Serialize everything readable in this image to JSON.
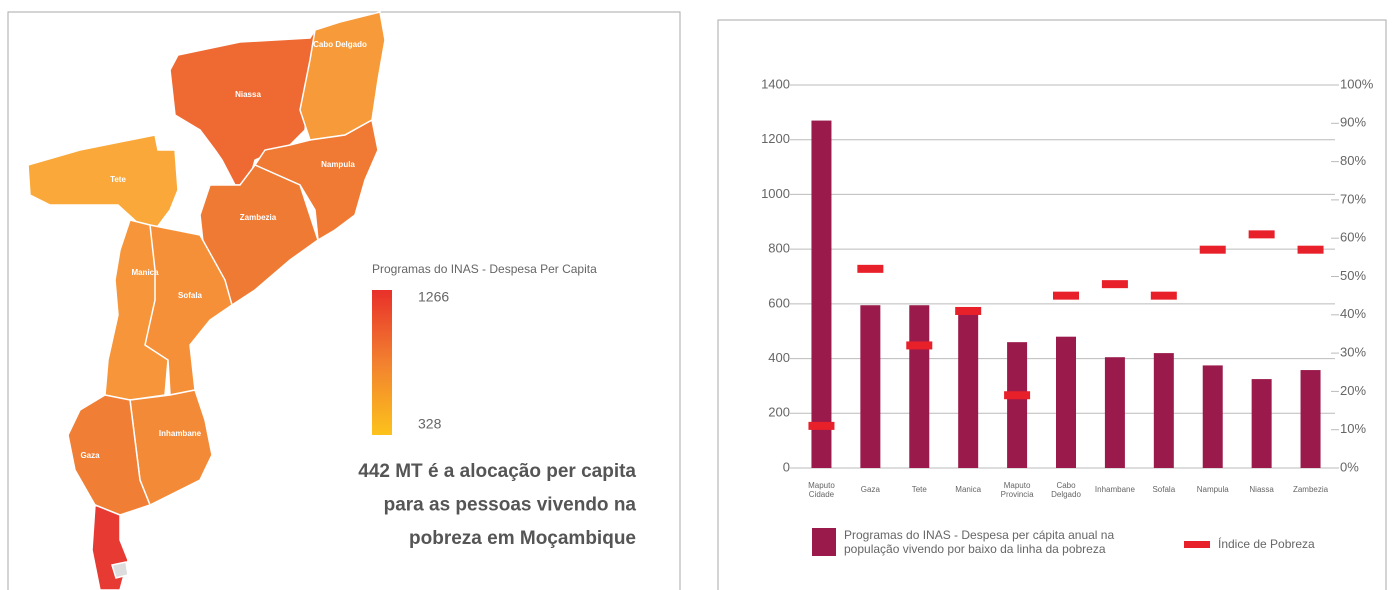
{
  "map": {
    "regions": [
      "Niassa",
      "Cabo Delgado",
      "Nampula",
      "Zambezia",
      "Tete",
      "Manica",
      "Sofala",
      "Inhambane",
      "Gaza"
    ],
    "legend": {
      "title": "Programas do INAS - Despesa Per Capita",
      "max": 1266,
      "min": 328
    },
    "annotation": [
      "442 MT é a alocação per capita",
      "para as pessoas vivendo na",
      "pobreza em Moçambique"
    ]
  },
  "chart_data": {
    "type": "bar",
    "categories": [
      "Maputo Cidade",
      "Gaza",
      "Tete",
      "Manica",
      "Maputo Provincia",
      "Cabo Delgado",
      "Inhambane",
      "Sofala",
      "Nampula",
      "Niassa",
      "Zambezia"
    ],
    "series": [
      {
        "name": "Programas do INAS - Despesa per cápita anual na população vivendo por baixo da linha da pobreza",
        "color": "#9a1b4b",
        "type": "bar",
        "values": [
          1270,
          595,
          595,
          585,
          460,
          480,
          405,
          420,
          375,
          325,
          358
        ]
      },
      {
        "name": "Índice de Pobreza",
        "color": "#e8202a",
        "type": "marker",
        "axis": "y2",
        "values": [
          11,
          52,
          32,
          41,
          19,
          45,
          48,
          45,
          57,
          61,
          57
        ]
      }
    ],
    "ylim": [
      0,
      1400
    ],
    "yticks": [
      0,
      200,
      400,
      600,
      800,
      1000,
      1200,
      1400
    ],
    "y2lim": [
      0,
      100
    ],
    "y2ticks": [
      {
        "value": 0,
        "label": "0%"
      },
      {
        "value": 10,
        "label": "10%"
      },
      {
        "value": 20,
        "label": "20%"
      },
      {
        "value": 30,
        "label": "30%"
      },
      {
        "value": 40,
        "label": "40%"
      },
      {
        "value": 50,
        "label": "50%"
      },
      {
        "value": 60,
        "label": "60%"
      },
      {
        "value": 70,
        "label": "70%"
      },
      {
        "value": 80,
        "label": "80%"
      },
      {
        "value": 90,
        "label": "90%"
      },
      {
        "value": 100,
        "label": "100%"
      }
    ],
    "grid": true
  }
}
